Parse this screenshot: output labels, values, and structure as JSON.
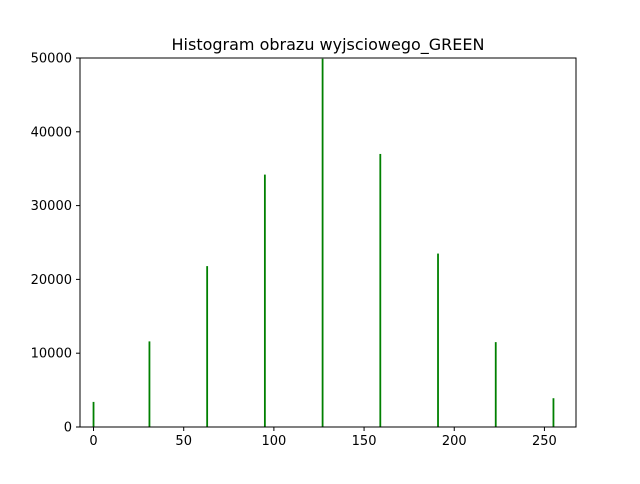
{
  "chart_data": {
    "type": "bar",
    "title": "Histogram obrazu wyjsciowego_GREEN",
    "xlabel": "",
    "ylabel": "",
    "xlim": [
      -7.5,
      267.5
    ],
    "ylim": [
      0,
      50000
    ],
    "x_ticks": [
      0,
      50,
      100,
      150,
      200,
      250
    ],
    "y_ticks": [
      0,
      10000,
      20000,
      30000,
      40000,
      50000
    ],
    "grid": false,
    "legend": "none",
    "bar_color": "#008000",
    "series": [
      {
        "points": [
          {
            "x": 0,
            "y": 3400
          },
          {
            "x": 31,
            "y": 11600
          },
          {
            "x": 63,
            "y": 21800
          },
          {
            "x": 95,
            "y": 34200
          },
          {
            "x": 127,
            "y": 49900
          },
          {
            "x": 159,
            "y": 37000
          },
          {
            "x": 191,
            "y": 23500
          },
          {
            "x": 223,
            "y": 11500
          },
          {
            "x": 255,
            "y": 3900
          }
        ]
      }
    ]
  }
}
